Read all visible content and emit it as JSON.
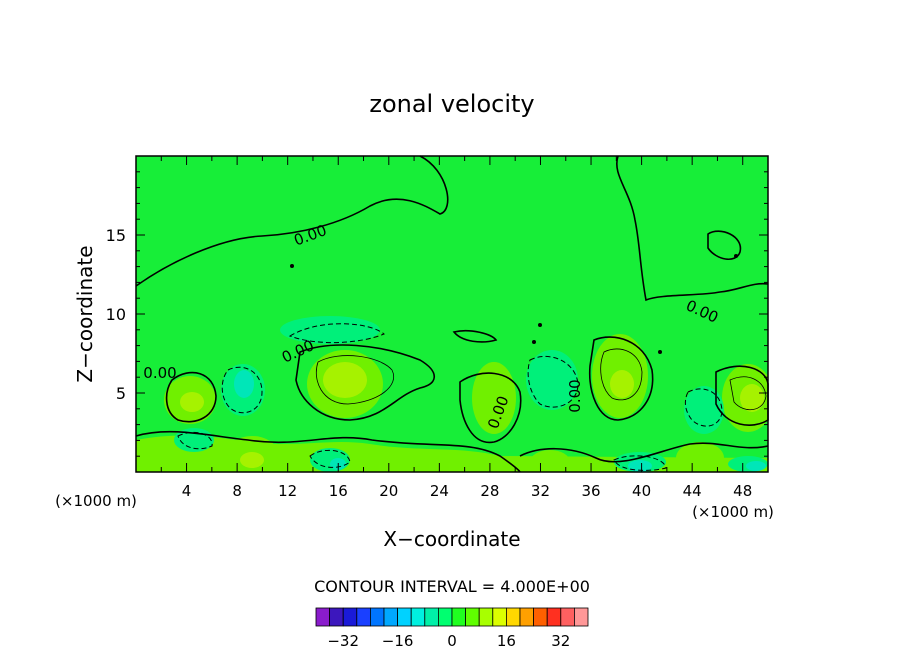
{
  "chart_data": {
    "type": "heatmap",
    "title": "zonal velocity",
    "xlabel": "X−coordinate",
    "ylabel": "Z−coordinate",
    "x_unit_left": "(×1000 m)",
    "x_unit_right": "(×1000 m)",
    "xlim": [
      0,
      50
    ],
    "ylim": [
      0,
      20
    ],
    "x_ticks": [
      "4",
      "8",
      "12",
      "16",
      "20",
      "24",
      "28",
      "32",
      "36",
      "40",
      "44",
      "48"
    ],
    "y_ticks": [
      "5",
      "10",
      "15"
    ],
    "contour_interval_text": "CONTOUR INTERVAL = 4.000E+00",
    "contour_labels": [
      "0.00",
      "0.00",
      "0.00",
      "0.00",
      "0.00",
      "0.00"
    ],
    "colorbar": {
      "levels": [
        -36,
        -32,
        -28,
        -24,
        -20,
        -16,
        -12,
        -8,
        -4,
        0,
        4,
        8,
        12,
        16,
        20,
        24,
        28,
        32,
        36
      ],
      "tick_labels": [
        "−32",
        "−16",
        "0",
        "16",
        "32"
      ],
      "colors": [
        "#8a1ccc",
        "#3c17bd",
        "#1a1ad8",
        "#1a40ff",
        "#0075ff",
        "#00a8ff",
        "#00d2ff",
        "#00f0e0",
        "#00f0a8",
        "#00ff70",
        "#20ff20",
        "#60ff00",
        "#a8ff00",
        "#dcff00",
        "#ffd800",
        "#ffa000",
        "#ff6000",
        "#ff3020",
        "#ff6060",
        "#ff9898"
      ]
    },
    "colors": {
      "zero_band": "#17ee38",
      "weak_positive": "#70f000",
      "positive": "#a6f200",
      "strong_positive": "#cdf500",
      "weak_negative": "#00f07a",
      "negative": "#00e6b8"
    }
  }
}
